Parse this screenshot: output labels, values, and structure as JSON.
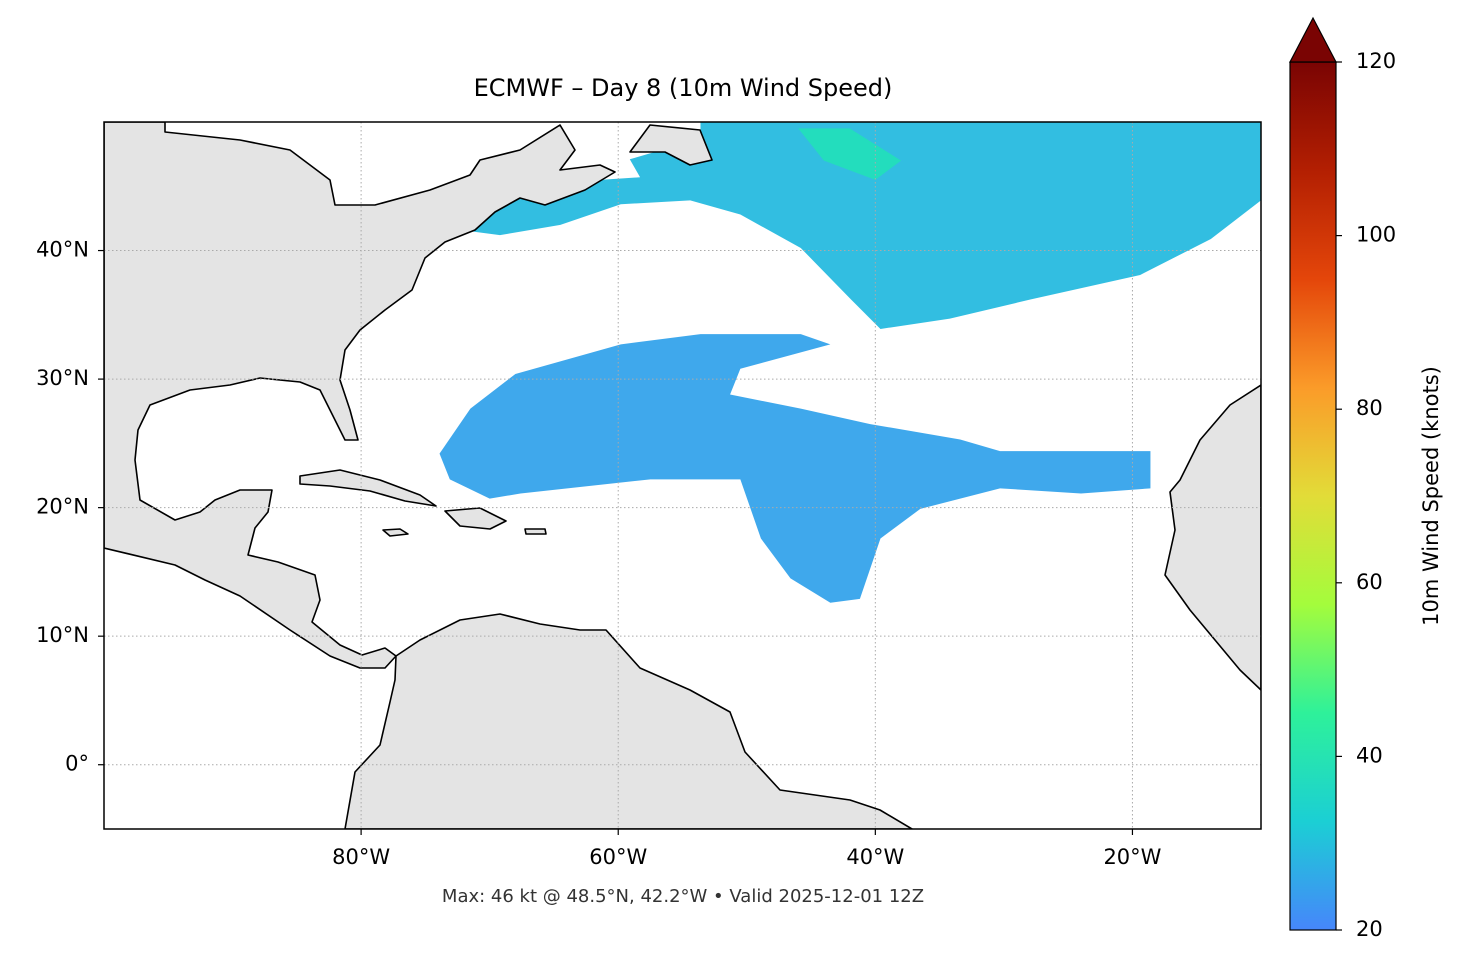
{
  "chart_data": {
    "type": "map",
    "title": "ECMWF – Day 8 (10m Wind Speed)",
    "annotation": "Max: 46 kt @ 48.5°N, 42.2°W • Valid 2025-12-01 12Z",
    "xlim": [
      -100,
      -10
    ],
    "ylim": [
      -5,
      50
    ],
    "xticks": [
      {
        "value": -80,
        "label": "80°W"
      },
      {
        "value": -60,
        "label": "60°W"
      },
      {
        "value": -40,
        "label": "40°W"
      },
      {
        "value": -20,
        "label": "20°W"
      }
    ],
    "yticks": [
      {
        "value": 0,
        "label": "0°"
      },
      {
        "value": 10,
        "label": "10°N"
      },
      {
        "value": 20,
        "label": "20°N"
      },
      {
        "value": 30,
        "label": "30°N"
      },
      {
        "value": 40,
        "label": "40°N"
      }
    ],
    "grid": true,
    "colorbar": {
      "label": "10m Wind Speed (knots)",
      "lim": [
        20,
        120
      ],
      "ticks": [
        20,
        40,
        60,
        80,
        100,
        120
      ],
      "colors": [
        "#4686fb",
        "#1bcfd4",
        "#2ef19a",
        "#a4fc3c",
        "#e2dc38",
        "#fb9b29",
        "#e4460a",
        "#b31f02",
        "#7a0403"
      ],
      "extend": "max"
    },
    "wind_regions": [
      {
        "speed": 29,
        "lon": [
          -53.6,
          -10,
          -10,
          -13.9,
          -19.4,
          -27.9,
          -34.2,
          -39.6,
          -41.9,
          -45.8,
          -50.5,
          -54.4,
          -59.8,
          -64.5,
          -69.2,
          -71.5,
          -70.4,
          -66.1,
          -61.4,
          -58.3,
          -59.1,
          -56.7,
          -53.6
        ],
        "lat": [
          50,
          50,
          43.9,
          40.9,
          38.1,
          36.2,
          34.7,
          33.9,
          36.2,
          40.2,
          42.8,
          43.9,
          43.6,
          42.0,
          41.2,
          41.5,
          43.9,
          44.3,
          45.5,
          45.7,
          47.1,
          47.8,
          48.6
        ]
      },
      {
        "speed": 38,
        "lon": [
          -46,
          -42,
          -38,
          -40,
          -44
        ],
        "lat": [
          49.5,
          49.5,
          47,
          45.5,
          47
        ]
      },
      {
        "speed": 25,
        "lon": [
          -73.9,
          -71.5,
          -68.0,
          -59.8,
          -53.6,
          -45.8,
          -43.5,
          -50.5,
          -51.3,
          -45.8,
          -40.4,
          -33.4,
          -30.3,
          -18.6,
          -18.6,
          -24.0,
          -30.3,
          -36.5,
          -39.6,
          -41.2,
          -43.5,
          -46.6,
          -48.9,
          -50.5,
          -57.5,
          -67.6,
          -70.0,
          -73.1
        ],
        "lat": [
          24.2,
          27.7,
          30.4,
          32.7,
          33.5,
          33.5,
          32.7,
          30.8,
          28.8,
          27.7,
          26.5,
          25.3,
          24.4,
          24.4,
          21.5,
          21.1,
          21.5,
          19.9,
          17.6,
          12.9,
          12.6,
          14.5,
          17.6,
          22.2,
          22.2,
          21.1,
          20.7,
          22.2
        ]
      }
    ]
  }
}
